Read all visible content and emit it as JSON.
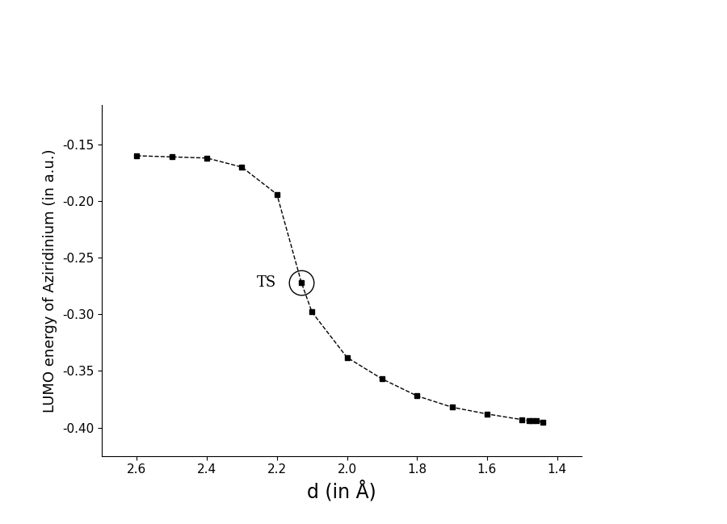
{
  "chart_data": {
    "type": "line",
    "x_label": "d (in Å)",
    "y_label": "LUMO energy of Aziridinium (in a.u.)",
    "x": [
      2.6,
      2.5,
      2.4,
      2.3,
      2.2,
      2.13,
      2.1,
      2.0,
      1.9,
      1.8,
      1.7,
      1.6,
      1.5,
      1.48,
      1.47,
      1.46,
      1.44
    ],
    "values": [
      -0.16,
      -0.161,
      -0.162,
      -0.17,
      -0.194,
      -0.272,
      -0.298,
      -0.338,
      -0.357,
      -0.372,
      -0.382,
      -0.388,
      -0.393,
      -0.394,
      -0.394,
      -0.394,
      -0.395
    ],
    "color": "#000000",
    "marker": "square",
    "line_style": "dashed",
    "xlim": [
      2.7,
      1.33
    ],
    "xticks": [
      2.6,
      2.4,
      2.2,
      2.0,
      1.8,
      1.6,
      1.4
    ],
    "ylim": [
      -0.425,
      -0.115
    ],
    "yticks": [
      {
        "value": -0.15,
        "label": "-0.15"
      },
      {
        "value": -0.2,
        "label": "-0.20"
      },
      {
        "value": -0.25,
        "label": "-0.25"
      },
      {
        "value": -0.3,
        "label": "-0.30"
      },
      {
        "value": -0.35,
        "label": "-0.35"
      },
      {
        "value": -0.4,
        "label": "-0.40"
      }
    ],
    "annotations": [
      {
        "text": "TS",
        "x": 2.13,
        "y": -0.272
      }
    ],
    "grid": false
  }
}
